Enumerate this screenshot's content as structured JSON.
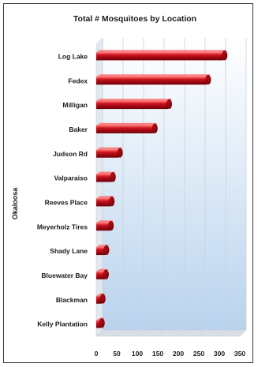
{
  "chart_data": {
    "type": "bar",
    "orientation": "horizontal",
    "style": "3d-cylinder",
    "title": "Total # Mosquitoes by Location",
    "xlabel": "",
    "ylabel": "Okaloosa",
    "categories": [
      "Log Lake",
      "Fedex",
      "Milligan",
      "Baker",
      "Judson Rd",
      "Valparaiso",
      "Reeves Place",
      "Meyerholz Tires",
      "Shady Lane",
      "Bluewater Bay",
      "Blackman",
      "Kelly Plantation"
    ],
    "values": [
      310,
      270,
      175,
      140,
      55,
      38,
      35,
      33,
      22,
      21,
      13,
      11
    ],
    "xlim": [
      0,
      350
    ],
    "xticks": [
      0,
      50,
      100,
      150,
      200,
      250,
      300,
      350
    ],
    "grid": true,
    "legend": "none",
    "colors": {
      "bar": "#c8101c",
      "bar_dark": "#6e0008",
      "bar_light": "#ff6a6a",
      "wall_top": "#ffffff",
      "wall_bottom": "#b9d3ee",
      "grid": "#c9d3dd",
      "frame": "#3a3a3a"
    }
  }
}
